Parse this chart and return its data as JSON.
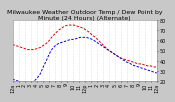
{
  "title": "Milwaukee Weather Outdoor Temp / Dew Point by Minute (24 Hours) (Alternate)",
  "background_color": "#ffffff",
  "grid_color": "#c8c8c8",
  "figure_bg": "#c8c8c8",
  "plot_bg": "#ffffff",
  "temp_color": "#dd0000",
  "dew_color": "#0000dd",
  "temp_values": [
    56,
    55,
    54,
    53,
    52,
    51,
    51,
    51,
    52,
    53,
    55,
    57,
    60,
    64,
    67,
    70,
    72,
    74,
    75,
    75,
    75,
    74,
    73,
    72,
    70,
    68,
    65,
    63,
    60,
    57,
    54,
    51,
    49,
    47,
    45,
    43,
    42,
    41,
    40,
    39,
    38,
    37,
    37,
    36,
    35,
    35,
    34,
    34
  ],
  "dew_values": [
    22,
    21,
    20,
    19,
    18,
    18,
    19,
    20,
    23,
    27,
    34,
    40,
    47,
    52,
    55,
    57,
    58,
    59,
    60,
    61,
    61,
    62,
    63,
    63,
    63,
    62,
    61,
    59,
    57,
    55,
    53,
    51,
    49,
    47,
    45,
    43,
    41,
    39,
    38,
    36,
    35,
    34,
    33,
    32,
    31,
    30,
    29,
    28
  ],
  "ylim": [
    20,
    80
  ],
  "ytick_values": [
    20,
    30,
    40,
    50,
    60,
    70,
    80
  ],
  "ytick_labels": [
    "20",
    "30",
    "40",
    "50",
    "60",
    "70",
    "80"
  ],
  "tick_color": "#000000",
  "title_color": "#000000",
  "title_fontsize": 4.5,
  "tick_fontsize": 3.5,
  "n_points": 48,
  "x_tick_labels": [
    "12a",
    "1",
    "2",
    "3",
    "4",
    "5",
    "6",
    "7",
    "8",
    "9",
    "10",
    "11",
    "12p",
    "1",
    "2",
    "3",
    "4",
    "5",
    "6",
    "7",
    "8",
    "9",
    "10",
    "11",
    "12a"
  ]
}
